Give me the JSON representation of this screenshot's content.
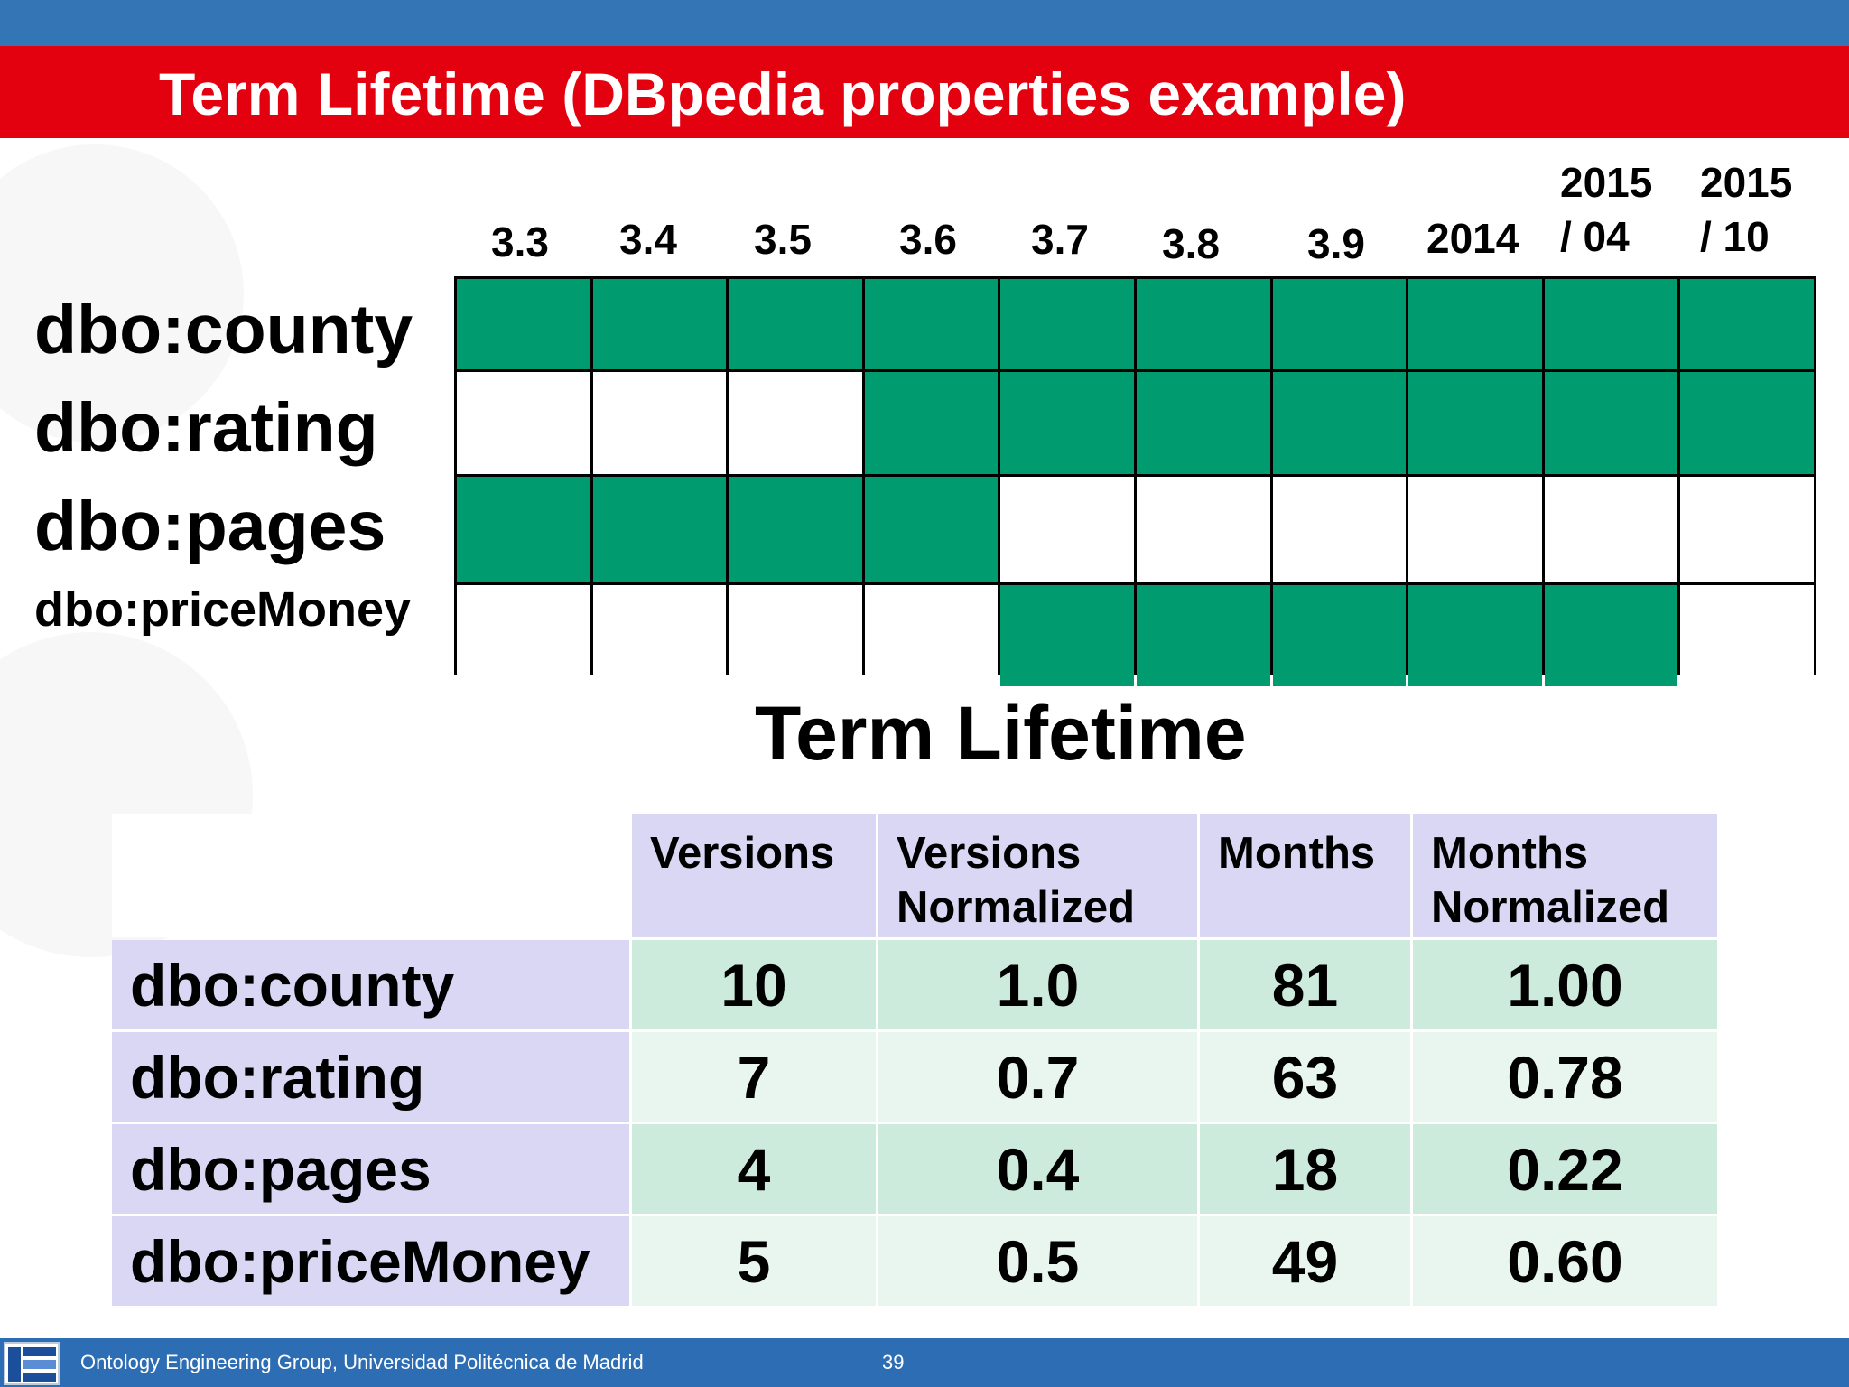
{
  "slide": {
    "title": "Term Lifetime (DBpedia properties example)",
    "section_title": "Term Lifetime",
    "page_number": "39",
    "footer_text": "Ontology Engineering Group, Universidad Politécnica de Madrid"
  },
  "lifetime_grid": {
    "versions": [
      {
        "line1": "",
        "line2": "3.3"
      },
      {
        "line1": "",
        "line2": "3.4"
      },
      {
        "line1": "",
        "line2": "3.5"
      },
      {
        "line1": "",
        "line2": "3.6"
      },
      {
        "line1": "",
        "line2": "3.7"
      },
      {
        "line1": "",
        "line2": "3.8"
      },
      {
        "line1": "",
        "line2": "3.9"
      },
      {
        "line1": "",
        "line2": "2014"
      },
      {
        "line1": "2015",
        "line2": "/ 04"
      },
      {
        "line1": "2015",
        "line2": "/ 10"
      }
    ],
    "rows": [
      {
        "label": "dbo:county",
        "present": [
          1,
          1,
          1,
          1,
          1,
          1,
          1,
          1,
          1,
          1
        ]
      },
      {
        "label": "dbo:rating",
        "present": [
          0,
          0,
          0,
          1,
          1,
          1,
          1,
          1,
          1,
          1
        ]
      },
      {
        "label": "dbo:pages",
        "present": [
          1,
          1,
          1,
          1,
          0,
          0,
          0,
          0,
          0,
          0
        ]
      },
      {
        "label": "dbo:priceMoney",
        "present": [
          0,
          0,
          0,
          0,
          1,
          1,
          1,
          1,
          1,
          0
        ]
      }
    ],
    "colors": {
      "present": "#009b6e",
      "absent": "#ffffff"
    }
  },
  "stats_table": {
    "headers": [
      {
        "line1": "Versions",
        "line2": ""
      },
      {
        "line1": "Versions",
        "line2": "Normalized"
      },
      {
        "line1": "Months",
        "line2": ""
      },
      {
        "line1": "Months",
        "line2": "Normalized"
      }
    ],
    "rows": [
      {
        "label": "dbo:county",
        "versions": "10",
        "versions_norm": "1.0",
        "months": "81",
        "months_norm": "1.00"
      },
      {
        "label": "dbo:rating",
        "versions": "7",
        "versions_norm": "0.7",
        "months": "63",
        "months_norm": "0.78"
      },
      {
        "label": "dbo:pages",
        "versions": "4",
        "versions_norm": "0.4",
        "months": "18",
        "months_norm": "0.22"
      },
      {
        "label": "dbo:priceMoney",
        "versions": "5",
        "versions_norm": "0.5",
        "months": "49",
        "months_norm": "0.60"
      }
    ]
  },
  "icons": {
    "footer_logo": "oeg-logo-icon"
  }
}
